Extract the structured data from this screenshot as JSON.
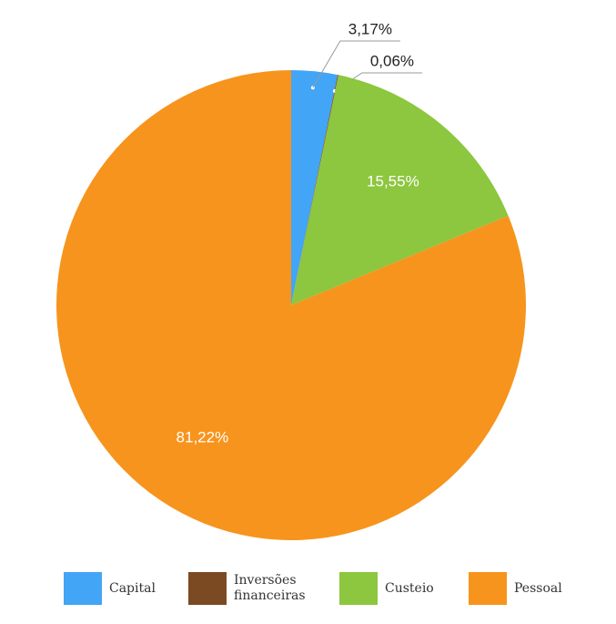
{
  "chart_data": {
    "type": "pie",
    "categories": [
      "Capital",
      "Inversões financeiras",
      "Custeio",
      "Pessoal"
    ],
    "values": [
      3.17,
      0.06,
      15.55,
      81.22
    ],
    "value_labels": [
      "3,17%",
      "0,06%",
      "15,55%",
      "81,22%"
    ],
    "colors": [
      "#42a5f5",
      "#7b4a22",
      "#8dc63f",
      "#f7941d"
    ],
    "legend": "bottom"
  }
}
